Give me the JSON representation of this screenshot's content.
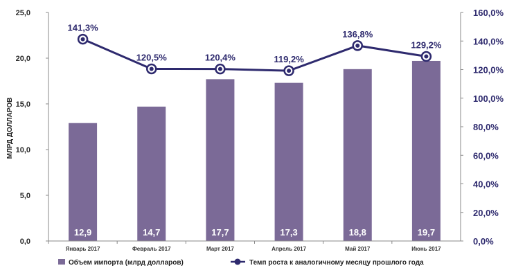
{
  "chart_data": {
    "type": "bar+line",
    "categories": [
      "Январь 2017",
      "Февраль 2017",
      "Март 2017",
      "Апрель 2017",
      "Май 2017",
      "Июнь 2017"
    ],
    "bar_series": {
      "name": "Объем импорта (млрд долларов)",
      "values": [
        12.9,
        14.7,
        17.7,
        17.3,
        18.8,
        19.7
      ],
      "labels": [
        "12,9",
        "14,7",
        "17,7",
        "17,3",
        "18,8",
        "19,7"
      ],
      "color": "#7b6a97"
    },
    "line_series": {
      "name": "Темп роста к аналогичному месяцу прошлого года",
      "values": [
        141.3,
        120.5,
        120.4,
        119.2,
        136.8,
        129.2
      ],
      "labels": [
        "141,3%",
        "120,5%",
        "120,4%",
        "119,2%",
        "136,8%",
        "129,2%"
      ],
      "color": "#2e2a6e"
    },
    "ylabel": "МЛРД ДОЛЛАРОВ",
    "y_left": {
      "range": [
        0,
        25
      ],
      "ticks": [
        0,
        5,
        10,
        15,
        20,
        25
      ],
      "tick_labels": [
        "0,0",
        "5,0",
        "10,0",
        "15,0",
        "20,0",
        "25,0"
      ]
    },
    "y_right": {
      "range": [
        0,
        160
      ],
      "ticks": [
        0,
        20,
        40,
        60,
        80,
        100,
        120,
        140,
        160
      ],
      "tick_labels": [
        "0,0%",
        "20,0%",
        "40,0%",
        "60,0%",
        "80,0%",
        "100,0%",
        "120,0%",
        "140,0%",
        "160,0%"
      ]
    },
    "grid": false,
    "legend_position": "bottom"
  }
}
